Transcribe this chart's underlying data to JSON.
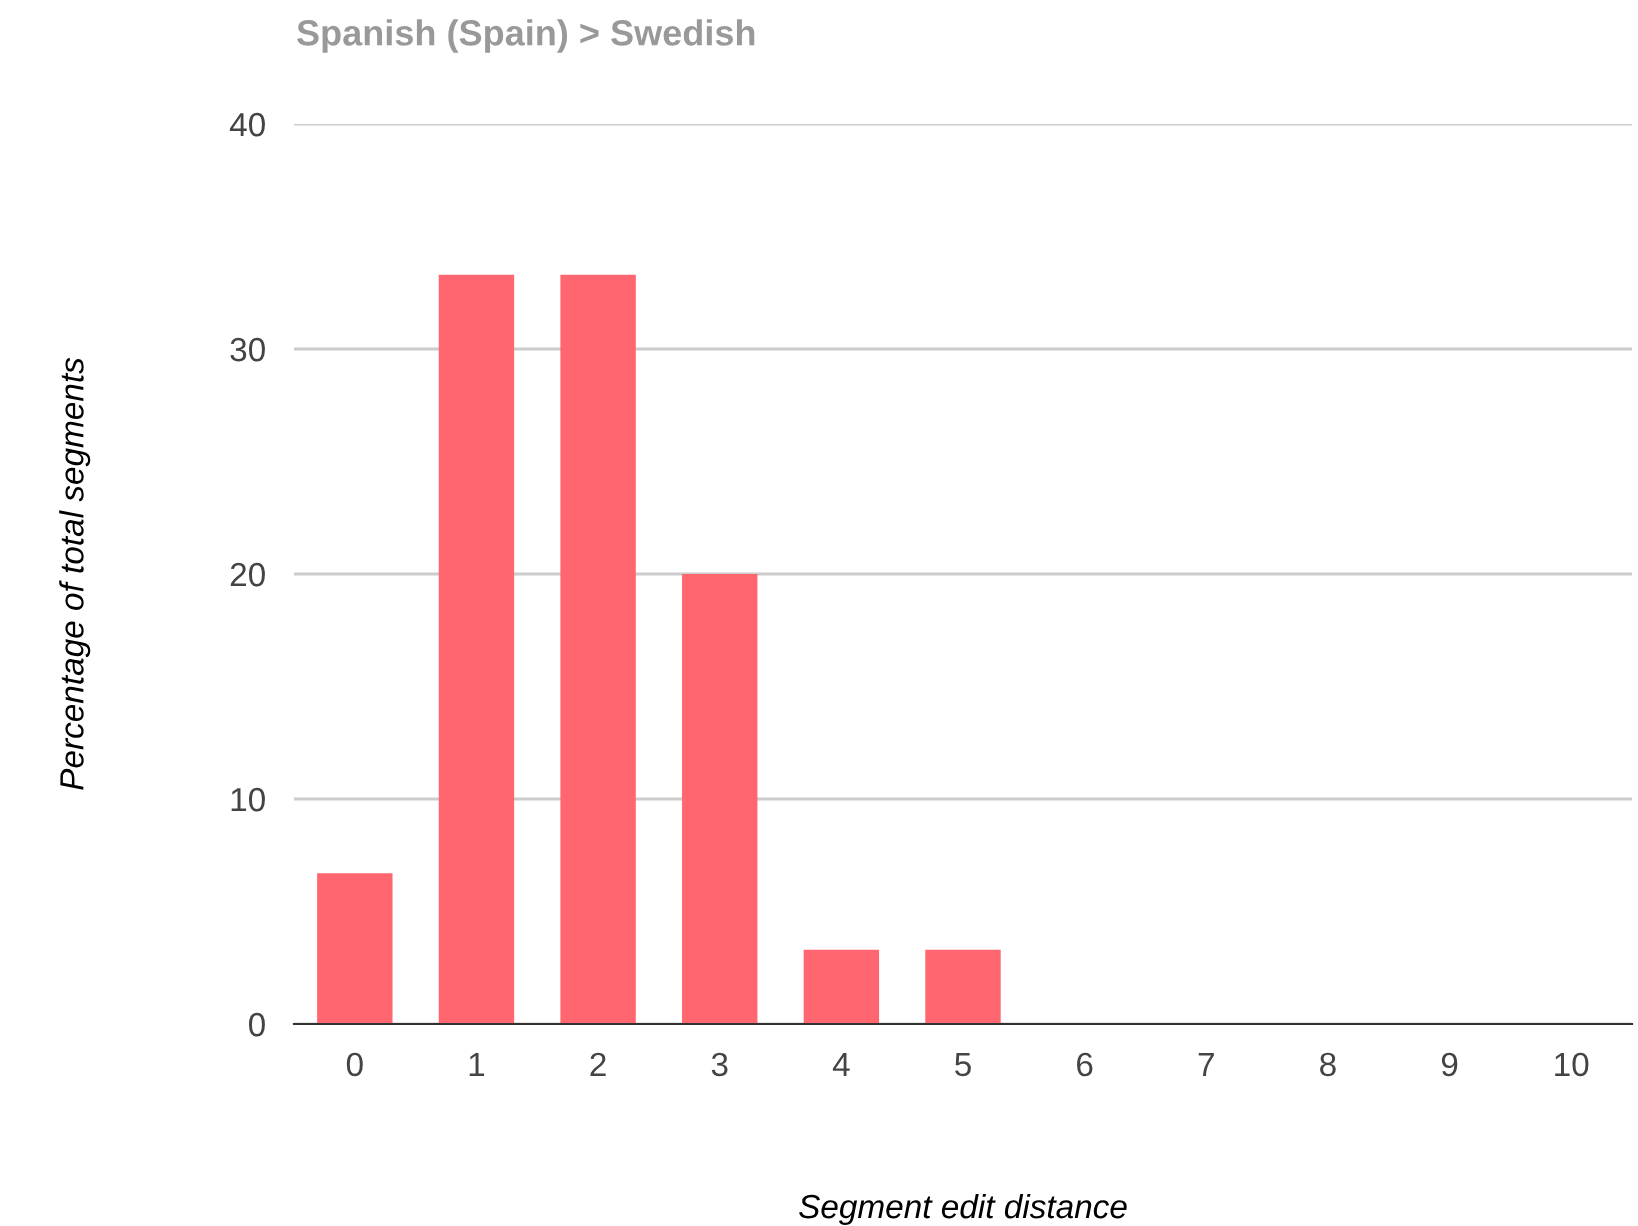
{
  "chart_data": {
    "type": "bar",
    "title": "Spanish (Spain) > Swedish",
    "xlabel": "Segment edit distance",
    "ylabel": "Percentage of total segments",
    "categories": [
      "0",
      "1",
      "2",
      "3",
      "4",
      "5",
      "6",
      "7",
      "8",
      "9",
      "10"
    ],
    "values": [
      6.7,
      33.3,
      33.3,
      20,
      3.3,
      3.3,
      0,
      0,
      0,
      0,
      0
    ],
    "color": "#ff6670",
    "ylim": [
      0,
      40
    ],
    "yticks": [
      0,
      10,
      20,
      30,
      40
    ],
    "grid": "y"
  }
}
